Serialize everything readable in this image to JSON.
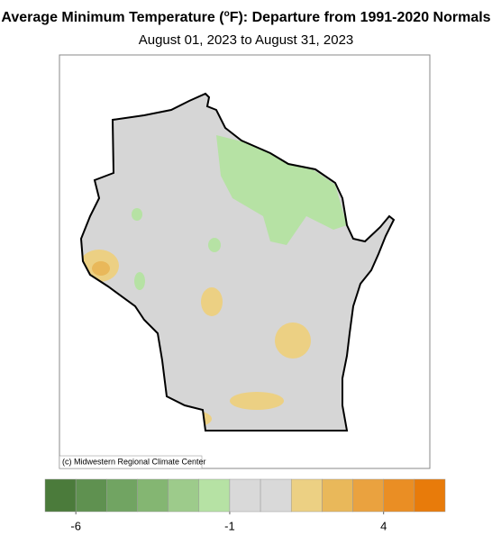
{
  "header": {
    "title": {
      "before": "Average Minimum Temperature (",
      "sup": "o",
      "after": "F): Departure from 1991-2020 Normals"
    },
    "subtitle": "August 01, 2023 to August 31, 2023"
  },
  "map": {
    "credit": "(c) Midwestern Regional Climate Center",
    "fill": "#d6d6d6"
  },
  "legend": {
    "colors": [
      "#4b7b3b",
      "#5f9150",
      "#71a462",
      "#84b672",
      "#9dcb8b",
      "#b6e2a4",
      "#d9d9d9",
      "#d9d9d9",
      "#ecd083",
      "#e9b85a",
      "#eaa23f",
      "#ea8e24",
      "#e87b0a"
    ],
    "range": [
      -7,
      6
    ],
    "ticks": [
      -6,
      -1,
      4
    ]
  }
}
